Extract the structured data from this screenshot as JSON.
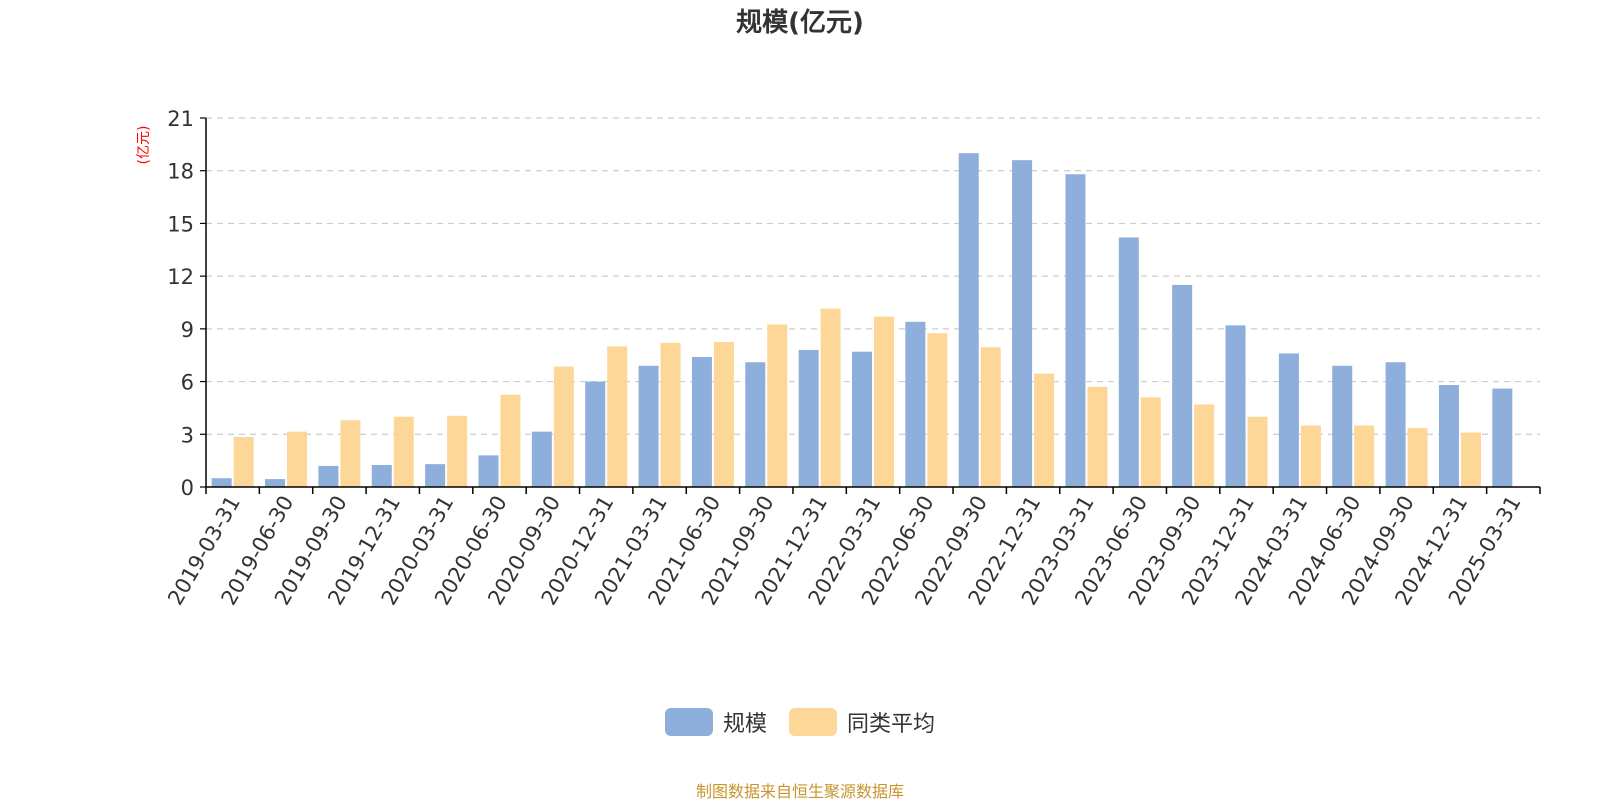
{
  "chart_data": {
    "type": "bar",
    "title": "规模(亿元)",
    "ylabel": "(亿元)",
    "xlabel": "",
    "ylim": [
      0,
      21
    ],
    "yticks": [
      0,
      3,
      6,
      9,
      12,
      15,
      18,
      21
    ],
    "grid": true,
    "legend_position": "bottom-center",
    "categories": [
      "2019-03-31",
      "2019-06-30",
      "2019-09-30",
      "2019-12-31",
      "2020-03-31",
      "2020-06-30",
      "2020-09-30",
      "2020-12-31",
      "2021-03-31",
      "2021-06-30",
      "2021-09-30",
      "2021-12-31",
      "2022-03-31",
      "2022-06-30",
      "2022-09-30",
      "2022-12-31",
      "2023-03-31",
      "2023-06-30",
      "2023-09-30",
      "2023-12-31",
      "2024-03-31",
      "2024-06-30",
      "2024-09-30",
      "2024-12-31",
      "2025-03-31"
    ],
    "series": [
      {
        "name": "规模",
        "color": "#8eaedb",
        "values": [
          0.5,
          0.45,
          1.2,
          1.25,
          1.3,
          1.8,
          3.15,
          6.0,
          6.9,
          7.4,
          7.1,
          7.8,
          7.7,
          9.4,
          19.0,
          18.6,
          17.8,
          14.2,
          11.5,
          9.2,
          7.6,
          6.9,
          7.1,
          5.8,
          5.6
        ]
      },
      {
        "name": "同类平均",
        "color": "#fdd797",
        "values": [
          2.85,
          3.15,
          3.8,
          4.0,
          4.05,
          5.25,
          6.85,
          8.0,
          8.2,
          8.25,
          9.25,
          10.15,
          9.7,
          8.75,
          7.95,
          6.45,
          5.7,
          5.1,
          4.7,
          4.0,
          3.5,
          3.5,
          3.35,
          3.1,
          null
        ]
      }
    ]
  },
  "source_note": "制图数据来自恒生聚源数据库",
  "colors": {
    "axis": "#000000",
    "grid": "#cccccc",
    "text": "#333333",
    "ylabel": "#ff0000",
    "source_note": "#c8962e"
  }
}
